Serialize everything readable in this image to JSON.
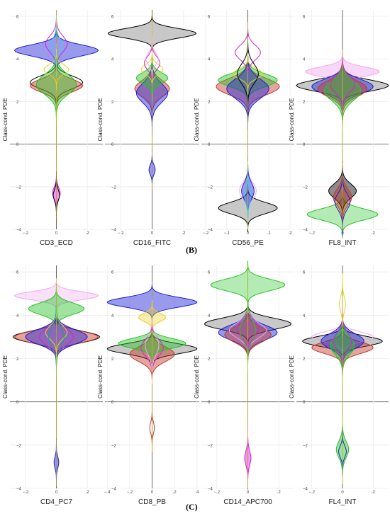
{
  "panels": [
    {
      "label": "(B)"
    },
    {
      "label": "(C)"
    }
  ],
  "palette": {
    "black": "#000000",
    "gray": "#aaaaaa",
    "blue": "#1f1fd6",
    "red": "#c0392b",
    "green": "#27c427",
    "lime": "#7fe07f",
    "magenta": "#d61fd6",
    "pink": "#f2a6f2",
    "yellow": "#e6d21a",
    "cyan": "#27d6e6",
    "teal": "#14a090"
  },
  "chart_data": [
    {
      "type": "violin",
      "panel": "B",
      "xlabel": "CD3_ECD",
      "ylabel": "Class-cond. PDE",
      "xlim": [
        -0.3,
        0.3
      ],
      "xticks": [
        -0.2,
        0,
        0.2
      ],
      "ylim": [
        -4,
        6.3
      ],
      "yticks": [
        -4,
        -2,
        0,
        2,
        4,
        6
      ],
      "violins": [
        {
          "color": "blue",
          "center": 4.4,
          "halfwidth": 0.27,
          "spread": 0.35,
          "fill": true
        },
        {
          "color": "black",
          "center": 2.9,
          "halfwidth": 0.17,
          "spread": 0.4,
          "fill": false
        },
        {
          "color": "red",
          "center": 2.75,
          "halfwidth": 0.17,
          "spread": 0.4,
          "fill": true
        },
        {
          "color": "green",
          "center": 2.8,
          "halfwidth": 0.13,
          "spread": 0.6,
          "fill": true
        },
        {
          "color": "yellow",
          "center": 3.5,
          "halfwidth": 0.08,
          "spread": 0.3,
          "fill": false
        },
        {
          "color": "magenta",
          "center": 4.7,
          "halfwidth": 0.07,
          "spread": 0.5,
          "fill": false
        },
        {
          "color": "cyan",
          "center": 4.6,
          "halfwidth": 0.04,
          "spread": 0.45,
          "fill": false
        },
        {
          "color": "magenta",
          "center": -2.3,
          "halfwidth": 0.025,
          "spread": 0.35,
          "fill": true
        },
        {
          "color": "black",
          "center": -2.4,
          "halfwidth": 0.02,
          "spread": 0.35,
          "fill": false
        }
      ]
    },
    {
      "type": "violin",
      "panel": "B",
      "xlabel": "CD16_FITC",
      "ylabel": "Class-cond. PDE",
      "xlim": [
        -0.3,
        0.3
      ],
      "xticks": [
        -0.2,
        0,
        0.2
      ],
      "ylim": [
        -4,
        6.3
      ],
      "yticks": [
        -4,
        -2,
        0,
        2,
        4,
        6
      ],
      "violins": [
        {
          "color": "black",
          "center": 5.2,
          "halfwidth": 0.28,
          "spread": 0.3,
          "fill": true,
          "gray": true
        },
        {
          "color": "red",
          "center": 2.6,
          "halfwidth": 0.11,
          "spread": 0.5,
          "fill": true
        },
        {
          "color": "blue",
          "center": 2.4,
          "halfwidth": 0.1,
          "spread": 0.6,
          "fill": true
        },
        {
          "color": "green",
          "center": 3.1,
          "halfwidth": 0.1,
          "spread": 0.35,
          "fill": true
        },
        {
          "color": "yellow",
          "center": 3.5,
          "halfwidth": 0.07,
          "spread": 0.3,
          "fill": false
        },
        {
          "color": "magenta",
          "center": 3.8,
          "halfwidth": 0.05,
          "spread": 0.4,
          "fill": false
        },
        {
          "color": "pink",
          "center": 4.0,
          "halfwidth": 0.04,
          "spread": 0.35,
          "fill": false
        },
        {
          "color": "blue",
          "center": -1.2,
          "halfwidth": 0.02,
          "spread": 0.3,
          "fill": true
        }
      ]
    },
    {
      "type": "violin",
      "panel": "B",
      "xlabel": "CD56_PE",
      "ylabel": "Class-cond. PDE",
      "xlim": [
        -0.22,
        0.22
      ],
      "xticks": [
        -0.2,
        -0.1,
        0,
        0.1,
        0.2
      ],
      "ylim": [
        -4,
        6.3
      ],
      "yticks": [
        -4,
        -2,
        0,
        2,
        4,
        6
      ],
      "violins": [
        {
          "color": "red",
          "center": 2.7,
          "halfwidth": 0.15,
          "spread": 0.5,
          "fill": true
        },
        {
          "color": "green",
          "center": 3.0,
          "halfwidth": 0.14,
          "spread": 0.4,
          "fill": true
        },
        {
          "color": "blue",
          "center": 2.6,
          "halfwidth": 0.1,
          "spread": 0.6,
          "fill": true
        },
        {
          "color": "yellow",
          "center": 3.3,
          "halfwidth": 0.07,
          "spread": 0.3,
          "fill": false
        },
        {
          "color": "magenta",
          "center": 4.3,
          "halfwidth": 0.06,
          "spread": 0.45,
          "fill": false
        },
        {
          "color": "black",
          "center": 3.3,
          "halfwidth": 0.05,
          "spread": 0.6,
          "fill": false
        },
        {
          "color": "black",
          "center": -3.0,
          "halfwidth": 0.14,
          "spread": 0.35,
          "fill": true,
          "gray": true
        },
        {
          "color": "pink",
          "center": -2.2,
          "halfwidth": 0.04,
          "spread": 0.5,
          "fill": false
        },
        {
          "color": "blue",
          "center": -2.2,
          "halfwidth": 0.03,
          "spread": 0.5,
          "fill": true
        },
        {
          "color": "cyan",
          "center": -2.4,
          "halfwidth": 0.015,
          "spread": 0.5,
          "fill": false
        }
      ]
    },
    {
      "type": "violin",
      "panel": "B",
      "xlabel": "FL8_INT",
      "ylabel": "Class-cond. PDE",
      "xlim": [
        -0.3,
        0.3
      ],
      "xticks": [
        -0.2,
        0,
        0.2
      ],
      "ylim": [
        -4,
        6.3
      ],
      "yticks": [
        -4,
        -2,
        0,
        2,
        4,
        6
      ],
      "violins": [
        {
          "color": "black",
          "center": 2.75,
          "halfwidth": 0.3,
          "spread": 0.35,
          "fill": true,
          "gray": true
        },
        {
          "color": "pink",
          "center": 3.4,
          "halfwidth": 0.24,
          "spread": 0.3,
          "fill": true
        },
        {
          "color": "blue",
          "center": 2.7,
          "halfwidth": 0.2,
          "spread": 0.45,
          "fill": true
        },
        {
          "color": "red",
          "center": 2.6,
          "halfwidth": 0.16,
          "spread": 0.5,
          "fill": true
        },
        {
          "color": "green",
          "center": 2.5,
          "halfwidth": 0.12,
          "spread": 0.6,
          "fill": true
        },
        {
          "color": "magenta",
          "center": 2.8,
          "halfwidth": 0.08,
          "spread": 0.5,
          "fill": false
        },
        {
          "color": "green",
          "center": -3.3,
          "halfwidth": 0.23,
          "spread": 0.35,
          "fill": true,
          "light": true
        },
        {
          "color": "black",
          "center": -2.2,
          "halfwidth": 0.09,
          "spread": 0.45,
          "fill": true
        },
        {
          "color": "red",
          "center": -2.5,
          "halfwidth": 0.06,
          "spread": 0.5,
          "fill": true
        },
        {
          "color": "blue",
          "center": -2.7,
          "halfwidth": 0.05,
          "spread": 0.5,
          "fill": false
        }
      ]
    },
    {
      "type": "violin",
      "panel": "C",
      "xlabel": "CD4_PC7",
      "ylabel": "Class-cond. PDE",
      "xlim": [
        -0.3,
        0.3
      ],
      "xticks": [
        -0.2,
        0,
        0.2
      ],
      "ylim": [
        -4,
        6.3
      ],
      "yticks": [
        -4,
        -2,
        0,
        2,
        4,
        6
      ],
      "violins": [
        {
          "color": "pink",
          "center": 4.9,
          "halfwidth": 0.27,
          "spread": 0.25,
          "fill": true,
          "light": true
        },
        {
          "color": "green",
          "center": 4.3,
          "halfwidth": 0.18,
          "spread": 0.35,
          "fill": true
        },
        {
          "color": "black",
          "center": 3.0,
          "halfwidth": 0.28,
          "spread": 0.35,
          "fill": false
        },
        {
          "color": "red",
          "center": 3.0,
          "halfwidth": 0.27,
          "spread": 0.35,
          "fill": true
        },
        {
          "color": "blue",
          "center": 3.0,
          "halfwidth": 0.2,
          "spread": 0.45,
          "fill": true
        },
        {
          "color": "magenta",
          "center": 3.0,
          "halfwidth": 0.11,
          "spread": 0.5,
          "fill": false
        },
        {
          "color": "yellow",
          "center": 3.2,
          "halfwidth": 0.07,
          "spread": 0.4,
          "fill": false
        },
        {
          "color": "teal",
          "center": 3.0,
          "halfwidth": 0.05,
          "spread": 0.6,
          "fill": false
        },
        {
          "color": "blue",
          "center": -2.8,
          "halfwidth": 0.015,
          "spread": 0.35,
          "fill": true
        }
      ]
    },
    {
      "type": "violin",
      "panel": "C",
      "xlabel": "CD8_PB",
      "ylabel": "Class-cond. PDE",
      "xlim": [
        -0.42,
        0.42
      ],
      "xticks": [
        -0.4,
        -0.2,
        0,
        0.2,
        0.4
      ],
      "ylim": [
        -4,
        6.3
      ],
      "yticks": [
        -4,
        -2,
        0,
        2,
        4,
        6
      ],
      "violins": [
        {
          "color": "blue",
          "center": 4.6,
          "halfwidth": 0.4,
          "spread": 0.3,
          "fill": true
        },
        {
          "color": "yellow",
          "center": 3.9,
          "halfwidth": 0.12,
          "spread": 0.25,
          "fill": true,
          "light": true
        },
        {
          "color": "black",
          "center": 2.45,
          "halfwidth": 0.4,
          "spread": 0.3,
          "fill": true,
          "gray": true
        },
        {
          "color": "red",
          "center": 2.2,
          "halfwidth": 0.2,
          "spread": 0.45,
          "fill": true
        },
        {
          "color": "green",
          "center": 2.7,
          "halfwidth": 0.3,
          "spread": 0.3,
          "fill": true
        },
        {
          "color": "magenta",
          "center": 2.5,
          "halfwidth": 0.1,
          "spread": 0.5,
          "fill": false
        },
        {
          "color": "pink",
          "center": 2.6,
          "halfwidth": 0.06,
          "spread": 0.55,
          "fill": false
        },
        {
          "color": "red",
          "center": -1.2,
          "halfwidth": 0.02,
          "spread": 0.35,
          "fill": false
        }
      ]
    },
    {
      "type": "violin",
      "panel": "C",
      "xlabel": "CD14_APC700",
      "ylabel": "Class-cond. PDE",
      "xlim": [
        -0.3,
        0.3
      ],
      "xticks": [
        -0.2,
        0,
        0.2
      ],
      "ylim": [
        -4,
        6.3
      ],
      "yticks": [
        -4,
        -2,
        0,
        2,
        4,
        6
      ],
      "violins": [
        {
          "color": "green",
          "center": 5.4,
          "halfwidth": 0.24,
          "spread": 0.35,
          "fill": true,
          "light": true
        },
        {
          "color": "black",
          "center": 3.6,
          "halfwidth": 0.28,
          "spread": 0.35,
          "fill": true,
          "gray": true
        },
        {
          "color": "blue",
          "center": 3.2,
          "halfwidth": 0.19,
          "spread": 0.45,
          "fill": true
        },
        {
          "color": "red",
          "center": 3.1,
          "halfwidth": 0.15,
          "spread": 0.45,
          "fill": true
        },
        {
          "color": "pink",
          "center": 3.3,
          "halfwidth": 0.12,
          "spread": 0.45,
          "fill": false
        },
        {
          "color": "magenta",
          "center": 3.4,
          "halfwidth": 0.07,
          "spread": 0.5,
          "fill": false
        },
        {
          "color": "green",
          "center": 3.3,
          "halfwidth": 0.05,
          "spread": 0.6,
          "fill": false
        },
        {
          "color": "magenta",
          "center": -2.6,
          "halfwidth": 0.02,
          "spread": 0.45,
          "fill": true
        }
      ]
    },
    {
      "type": "violin",
      "panel": "C",
      "xlabel": "FL4_INT",
      "ylabel": "Class-cond. PDE",
      "xlim": [
        -0.3,
        0.3
      ],
      "xticks": [
        -0.2,
        0,
        0.2
      ],
      "ylim": [
        -4,
        6.3
      ],
      "yticks": [
        -4,
        -2,
        0,
        2,
        4,
        6
      ],
      "violins": [
        {
          "color": "black",
          "center": 2.8,
          "halfwidth": 0.26,
          "spread": 0.3,
          "fill": true,
          "gray": true
        },
        {
          "color": "red",
          "center": 2.5,
          "halfwidth": 0.2,
          "spread": 0.35,
          "fill": true
        },
        {
          "color": "pink",
          "center": 3.0,
          "halfwidth": 0.2,
          "spread": 0.3,
          "fill": false
        },
        {
          "color": "blue",
          "center": 2.8,
          "halfwidth": 0.14,
          "spread": 0.45,
          "fill": true
        },
        {
          "color": "green",
          "center": 2.6,
          "halfwidth": 0.08,
          "spread": 0.55,
          "fill": true
        },
        {
          "color": "magenta",
          "center": 2.8,
          "halfwidth": 0.06,
          "spread": 0.5,
          "fill": false
        },
        {
          "color": "yellow",
          "center": 4.5,
          "halfwidth": 0.02,
          "spread": 0.45,
          "fill": false
        },
        {
          "color": "green",
          "center": -2.2,
          "halfwidth": 0.04,
          "spread": 0.5,
          "fill": true
        },
        {
          "color": "blue",
          "center": -2.3,
          "halfwidth": 0.025,
          "spread": 0.35,
          "fill": false
        }
      ]
    }
  ]
}
